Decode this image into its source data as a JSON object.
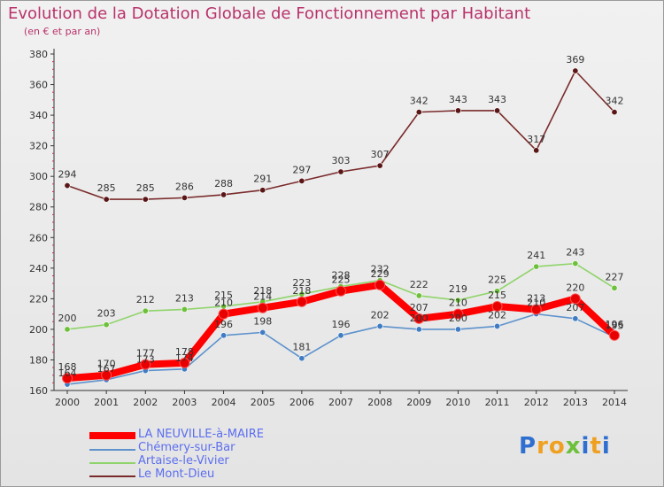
{
  "chart_data": {
    "type": "line",
    "title": "Evolution de la Dotation Globale de Fonctionnement par Habitant",
    "subtitle": "(en € et par an)",
    "xlabel": "",
    "ylabel": "",
    "categories": [
      "2000",
      "2001",
      "2002",
      "2003",
      "2004",
      "2005",
      "2006",
      "2007",
      "2008",
      "2009",
      "2010",
      "2011",
      "2012",
      "2013",
      "2014"
    ],
    "ylim": [
      160,
      380
    ],
    "yticks": [
      160,
      180,
      200,
      220,
      240,
      260,
      280,
      300,
      320,
      340,
      360,
      380
    ],
    "grid": false,
    "legend_position": "bottom-left",
    "series": [
      {
        "name": "Le Mont-Dieu",
        "color": "#7a2a2a",
        "marker": "#5a1616",
        "values": [
          294,
          285,
          285,
          286,
          288,
          291,
          297,
          303,
          307,
          342,
          343,
          343,
          317,
          369,
          342
        ]
      },
      {
        "name": "Artaise-le-Vivier",
        "color": "#8fd46a",
        "marker": "#6cc03a",
        "values": [
          200,
          203,
          212,
          213,
          215,
          218,
          223,
          228,
          232,
          222,
          219,
          225,
          241,
          243,
          227
        ]
      },
      {
        "name": "Chémery-sur-Bar",
        "color": "#5d92cc",
        "marker": "#3f7cc4",
        "values": [
          164,
          167,
          173,
          174,
          196,
          198,
          181,
          196,
          202,
          200,
          200,
          202,
          210,
          207,
          195
        ]
      },
      {
        "name": "LA NEUVILLE-à-MAIRE",
        "color": "#ff0000",
        "marker": "#e80000",
        "values": [
          168,
          170,
          177,
          178,
          210,
          214,
          218,
          225,
          229,
          207,
          210,
          215,
          213,
          220,
          196
        ]
      }
    ]
  },
  "legend": [
    {
      "label": "LA NEUVILLE-à-MAIRE",
      "color": "#ff0000"
    },
    {
      "label": "Chémery-sur-Bar",
      "color": "#5d92cc"
    },
    {
      "label": "Artaise-le-Vivier",
      "color": "#8fd46a"
    },
    {
      "label": "Le Mont-Dieu",
      "color": "#7a2a2a"
    }
  ],
  "logo": {
    "letters": [
      "P",
      "r",
      "o",
      "x",
      "i",
      "t",
      "i"
    ],
    "colors": [
      "#2f6fd0",
      "#f0a020",
      "#f0a020",
      "#6cc03a",
      "#2f6fd0",
      "#f0a020",
      "#2f6fd0"
    ]
  }
}
